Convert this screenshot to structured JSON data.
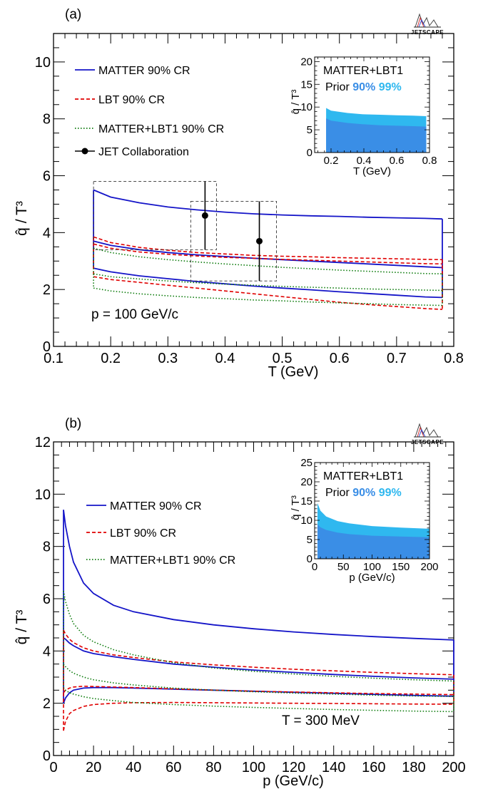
{
  "chart_data": [
    {
      "panel": "(a)",
      "type": "line",
      "logo": "JETSCAPE",
      "xlabel": "T (GeV)",
      "ylabel": "q̂ / T³",
      "xlim": [
        0.1,
        0.8
      ],
      "ylim": [
        0,
        11
      ],
      "xticks": [
        "0.1",
        "0.2",
        "0.3",
        "0.4",
        "0.5",
        "0.6",
        "0.7",
        "0.8"
      ],
      "yticks": [
        "0",
        "2",
        "4",
        "6",
        "8",
        "10"
      ],
      "annotation": "p = 100 GeV/c",
      "legend": [
        "MATTER 90% CR",
        "LBT 90% CR",
        "MATTER+LBT1 90% CR",
        "JET Collaboration"
      ],
      "series": [
        {
          "name": "MATTER 90% CR",
          "style": "solid",
          "color": "#1414c8",
          "x": [
            0.17,
            0.2,
            0.25,
            0.3,
            0.35,
            0.4,
            0.45,
            0.5,
            0.55,
            0.6,
            0.65,
            0.7,
            0.75,
            0.78
          ],
          "upper": [
            5.5,
            5.25,
            5.05,
            4.9,
            4.8,
            4.72,
            4.66,
            4.62,
            4.59,
            4.57,
            4.54,
            4.52,
            4.5,
            4.48
          ],
          "lower": [
            2.75,
            2.62,
            2.48,
            2.38,
            2.28,
            2.2,
            2.12,
            2.05,
            1.99,
            1.92,
            1.86,
            1.8,
            1.74,
            1.72
          ],
          "median_upper": [
            3.7,
            3.55,
            3.4,
            3.3,
            3.22,
            3.16,
            3.1,
            3.05,
            3.0,
            2.95,
            2.9,
            2.85,
            2.8,
            2.77
          ]
        },
        {
          "name": "LBT 90% CR",
          "style": "dashed",
          "color": "#e00000",
          "x": [
            0.17,
            0.2,
            0.25,
            0.3,
            0.35,
            0.4,
            0.45,
            0.5,
            0.55,
            0.6,
            0.65,
            0.7,
            0.75,
            0.78
          ],
          "upper": [
            3.85,
            3.65,
            3.48,
            3.38,
            3.3,
            3.25,
            3.2,
            3.17,
            3.15,
            3.12,
            3.1,
            3.08,
            3.06,
            3.05
          ],
          "lower": [
            2.45,
            2.35,
            2.25,
            2.15,
            2.05,
            1.95,
            1.85,
            1.75,
            1.65,
            1.55,
            1.47,
            1.4,
            1.33,
            1.3
          ],
          "median_upper": [
            3.6,
            3.45,
            3.32,
            3.24,
            3.18,
            3.13,
            3.1,
            3.06,
            3.03,
            3.0,
            2.97,
            2.94,
            2.91,
            2.9
          ]
        },
        {
          "name": "MATTER+LBT1 90% CR",
          "style": "dotted",
          "color": "#0a7a0a",
          "x": [
            0.17,
            0.2,
            0.25,
            0.3,
            0.35,
            0.4,
            0.45,
            0.5,
            0.55,
            0.6,
            0.65,
            0.7,
            0.75,
            0.78
          ],
          "upper": [
            3.45,
            3.3,
            3.15,
            3.05,
            2.97,
            2.9,
            2.84,
            2.78,
            2.73,
            2.68,
            2.64,
            2.6,
            2.56,
            2.55
          ],
          "lower": [
            2.05,
            1.95,
            1.85,
            1.78,
            1.72,
            1.68,
            1.63,
            1.6,
            1.56,
            1.53,
            1.5,
            1.47,
            1.45,
            1.44
          ],
          "median_upper": [
            2.55,
            2.45,
            2.37,
            2.3,
            2.24,
            2.19,
            2.15,
            2.11,
            2.08,
            2.05,
            2.02,
            2.0,
            1.98,
            1.97
          ]
        }
      ],
      "points": {
        "name": "JET Collaboration",
        "x": [
          0.365,
          0.46
        ],
        "y": [
          4.6,
          3.7
        ],
        "yerr_low": [
          3.4,
          2.3
        ],
        "yerr_high": [
          5.8,
          5.1
        ]
      },
      "boxes": [
        {
          "x0": 0.17,
          "x1": 0.385,
          "y0": 3.4,
          "y1": 5.8
        },
        {
          "x0": 0.34,
          "x1": 0.49,
          "y0": 2.3,
          "y1": 5.1
        }
      ],
      "inset": {
        "xlabel": "T (GeV)",
        "ylabel": "q̂ / T³",
        "xlim": [
          0.1,
          0.8
        ],
        "ylim": [
          0,
          21
        ],
        "xticks": [
          "0.2",
          "0.4",
          "0.6",
          "0.8"
        ],
        "yticks": [
          "0",
          "5",
          "10",
          "15",
          "20"
        ],
        "text_line1": "MATTER+LBT1",
        "text_prior": "Prior",
        "text_90": "90%",
        "text_99": "99%",
        "color_90": "#3a8ee6",
        "color_99": "#2fb8ef",
        "x": [
          0.17,
          0.2,
          0.3,
          0.4,
          0.5,
          0.6,
          0.7,
          0.78
        ],
        "band90": [
          7.5,
          7.0,
          6.5,
          6.2,
          6.0,
          5.9,
          5.8,
          5.7
        ],
        "band99": [
          9.8,
          9.2,
          8.7,
          8.4,
          8.3,
          8.2,
          8.1,
          8.0
        ]
      }
    },
    {
      "panel": "(b)",
      "type": "line",
      "logo": "JETSCAPE",
      "xlabel": "p (GeV/c)",
      "ylabel": "q̂ / T³",
      "xlim": [
        0,
        200
      ],
      "ylim": [
        0,
        12
      ],
      "xticks": [
        "0",
        "20",
        "40",
        "60",
        "80",
        "100",
        "120",
        "140",
        "160",
        "180",
        "200"
      ],
      "yticks": [
        "0",
        "2",
        "4",
        "6",
        "8",
        "10",
        "12"
      ],
      "annotation": "T = 300 MeV",
      "legend": [
        "MATTER 90% CR",
        "LBT 90% CR",
        "MATTER+LBT1 90% CR"
      ],
      "series": [
        {
          "name": "MATTER 90% CR",
          "style": "solid",
          "color": "#1414c8",
          "x": [
            5,
            6,
            8,
            10,
            15,
            20,
            30,
            40,
            60,
            80,
            100,
            120,
            140,
            160,
            180,
            200
          ],
          "upper": [
            9.4,
            8.8,
            8.0,
            7.4,
            6.6,
            6.2,
            5.75,
            5.5,
            5.2,
            5.0,
            4.85,
            4.73,
            4.63,
            4.55,
            4.48,
            4.42
          ],
          "lower": [
            2.0,
            2.2,
            2.4,
            2.5,
            2.58,
            2.6,
            2.6,
            2.58,
            2.54,
            2.5,
            2.46,
            2.42,
            2.38,
            2.34,
            2.3,
            2.27
          ],
          "median_upper": [
            4.5,
            4.45,
            4.3,
            4.2,
            4.0,
            3.9,
            3.78,
            3.68,
            3.5,
            3.38,
            3.27,
            3.18,
            3.1,
            3.03,
            2.97,
            2.92
          ]
        },
        {
          "name": "LBT 90% CR",
          "style": "dashed",
          "color": "#e00000",
          "x": [
            5,
            6,
            8,
            10,
            15,
            20,
            30,
            40,
            60,
            80,
            100,
            120,
            140,
            160,
            180,
            200
          ],
          "upper": [
            4.8,
            4.65,
            4.45,
            4.32,
            4.12,
            4.0,
            3.85,
            3.75,
            3.58,
            3.47,
            3.38,
            3.3,
            3.24,
            3.18,
            3.13,
            3.09
          ],
          "lower": [
            0.95,
            1.3,
            1.6,
            1.72,
            1.88,
            1.95,
            2.0,
            2.02,
            2.03,
            2.02,
            2.01,
            2.0,
            1.99,
            1.98,
            1.97,
            1.96
          ],
          "median_upper": [
            2.4,
            2.5,
            2.58,
            2.62,
            2.65,
            2.64,
            2.62,
            2.6,
            2.55,
            2.5,
            2.46,
            2.43,
            2.4,
            2.37,
            2.35,
            2.33
          ]
        },
        {
          "name": "MATTER+LBT1 90% CR",
          "style": "dotted",
          "color": "#0a7a0a",
          "x": [
            5,
            6,
            8,
            10,
            15,
            20,
            30,
            40,
            60,
            80,
            100,
            120,
            140,
            160,
            180,
            200
          ],
          "upper": [
            6.3,
            5.9,
            5.4,
            5.05,
            4.6,
            4.35,
            4.05,
            3.85,
            3.55,
            3.35,
            3.22,
            3.12,
            3.03,
            2.96,
            2.9,
            2.85
          ],
          "lower": [
            2.6,
            2.5,
            2.4,
            2.35,
            2.25,
            2.18,
            2.1,
            2.03,
            1.95,
            1.89,
            1.84,
            1.8,
            1.76,
            1.73,
            1.7,
            1.68
          ],
          "median_upper": [
            3.5,
            3.4,
            3.25,
            3.15,
            3.0,
            2.9,
            2.78,
            2.7,
            2.58,
            2.5,
            2.44,
            2.39,
            2.35,
            2.31,
            2.28,
            2.26
          ]
        }
      ],
      "inset": {
        "xlabel": "p (GeV/c)",
        "ylabel": "q̂ / T³",
        "xlim": [
          0,
          200
        ],
        "ylim": [
          0,
          25
        ],
        "xticks": [
          "0",
          "50",
          "100",
          "150",
          "200"
        ],
        "yticks": [
          "0",
          "5",
          "10",
          "15",
          "20",
          "25"
        ],
        "text_line1": "MATTER+LBT1",
        "text_prior": "Prior",
        "text_90": "90%",
        "text_99": "99%",
        "color_90": "#3a8ee6",
        "color_99": "#2fb8ef",
        "x": [
          5,
          10,
          20,
          40,
          60,
          100,
          150,
          200
        ],
        "band90": [
          9.0,
          8.2,
          7.5,
          6.8,
          6.4,
          6.0,
          5.8,
          5.6
        ],
        "band99": [
          14.5,
          12.5,
          11.0,
          9.8,
          9.2,
          8.5,
          8.1,
          7.8
        ]
      }
    }
  ]
}
